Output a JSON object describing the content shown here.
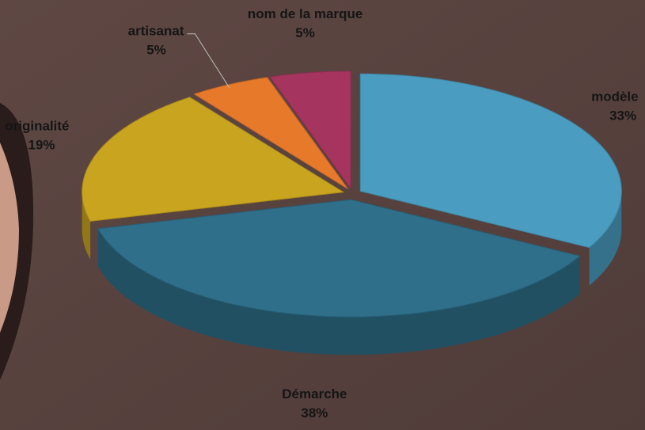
{
  "chart_data": {
    "type": "pie",
    "categories": [
      "modèle",
      "Démarche",
      "originalité",
      "artisanat",
      "nom de la marque"
    ],
    "values": [
      33,
      38,
      19,
      5,
      5
    ],
    "value_labels": [
      "33%",
      "38%",
      "19%",
      "5%",
      "5%"
    ],
    "colors": [
      "#4a9dc0",
      "#2f6f8a",
      "#c9a51f",
      "#e7792b",
      "#a5355f"
    ]
  }
}
